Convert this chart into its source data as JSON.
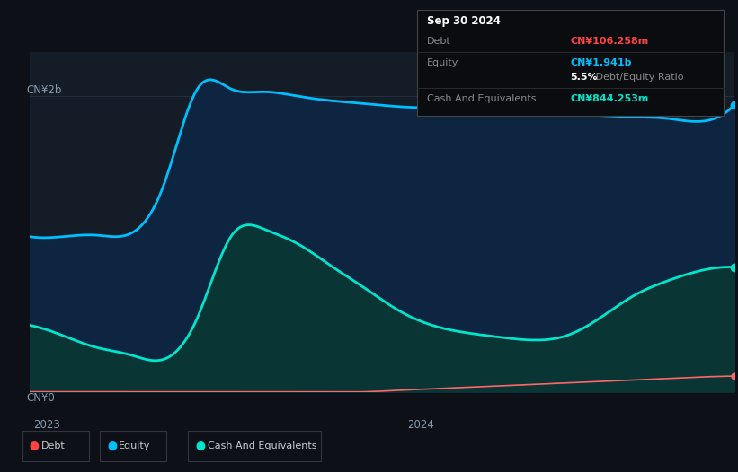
{
  "background_color": "#0d1117",
  "plot_bg_color": "#131c27",
  "title": "Sep 30 2024",
  "info_box": {
    "title": "Sep 30 2024",
    "rows": [
      {
        "label": "Debt",
        "value": "CN¥106.258m",
        "value_color": "#ff4444"
      },
      {
        "label": "Equity",
        "value": "CN¥1.941b",
        "value_color": "#00bfff"
      },
      {
        "label": "",
        "value2_bold": "5.5%",
        "value2_normal": " Debt/Equity Ratio",
        "value_color": "#ffffff"
      },
      {
        "label": "Cash And Equivalents",
        "value": "CN¥844.253m",
        "value_color": "#00e5cc"
      }
    ]
  },
  "ylabel_top": "CN¥2b",
  "ylabel_bottom": "CN¥0",
  "x_labels": [
    "2023",
    "2024"
  ],
  "grid_color": "#263545",
  "grid_alpha": 0.8,
  "equity_color": "#00bfff",
  "debt_color": "#ff6666",
  "cash_color": "#00e5cc",
  "legend_items": [
    {
      "label": "Debt",
      "color": "#ff4444"
    },
    {
      "label": "Equity",
      "color": "#00bfff"
    },
    {
      "label": "Cash And Equivalents",
      "color": "#00e5cc"
    }
  ],
  "equity_data": [
    1.05,
    1.05,
    1.06,
    1.07,
    1.4,
    2.05,
    2.05,
    2.03,
    2.0,
    1.97,
    1.95,
    1.93,
    1.92,
    1.91,
    1.9,
    1.89,
    1.88,
    1.87,
    1.86,
    1.85,
    1.83,
    1.941
  ],
  "cash_data": [
    0.45,
    0.38,
    0.3,
    0.25,
    0.22,
    0.5,
    1.05,
    1.1,
    1.0,
    0.85,
    0.7,
    0.55,
    0.45,
    0.4,
    0.37,
    0.35,
    0.38,
    0.5,
    0.65,
    0.75,
    0.82,
    0.844
  ],
  "debt_data": [
    0.0,
    0.0,
    0.0,
    0.0,
    0.0,
    0.0,
    0.0,
    0.0,
    0.0,
    0.0,
    0.0,
    0.01,
    0.02,
    0.03,
    0.04,
    0.05,
    0.06,
    0.07,
    0.08,
    0.09,
    0.1,
    0.106
  ],
  "ylim": [
    0,
    2.3
  ],
  "equity_fill": "#0d2540",
  "cash_fill": "#0a3535"
}
